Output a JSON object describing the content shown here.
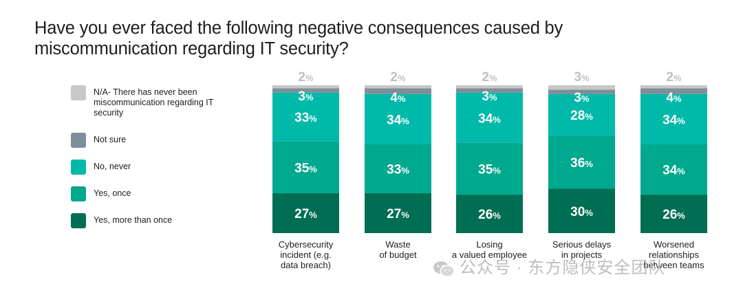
{
  "title": "Have you ever faced the following negative consequences caused by miscommunication regarding IT security?",
  "chart_data": {
    "type": "bar",
    "stacked": true,
    "orientation": "vertical",
    "percent_axis": [
      0,
      100
    ],
    "categories": [
      [
        "Cybersecurity",
        "incident (e.g.",
        "data breach)"
      ],
      [
        "Waste",
        "of budget"
      ],
      [
        "Losing",
        "a valued employee"
      ],
      [
        "Serious delays",
        "in projects"
      ],
      [
        "Worsened",
        "relationships",
        "between teams"
      ]
    ],
    "series": [
      {
        "name": "Yes, more than once",
        "color": "#006e52",
        "values": [
          27,
          27,
          26,
          30,
          26
        ]
      },
      {
        "name": "Yes, once",
        "color": "#00a88e",
        "values": [
          35,
          33,
          35,
          36,
          34
        ]
      },
      {
        "name": "No, never",
        "color": "#00b9a9",
        "values": [
          33,
          34,
          34,
          28,
          34
        ]
      },
      {
        "name": "Not sure",
        "color": "#7e8f99",
        "values": [
          3,
          4,
          3,
          3,
          4
        ]
      },
      {
        "name": "N/A- There has never been miscommunication regarding IT security",
        "color": "#c7c7c7",
        "values": [
          2,
          2,
          2,
          3,
          2
        ]
      }
    ],
    "value_suffix": "%"
  },
  "legend_order": [
    4,
    3,
    2,
    1,
    0
  ],
  "watermark": "公众号 · 东方隐侠安全团队"
}
